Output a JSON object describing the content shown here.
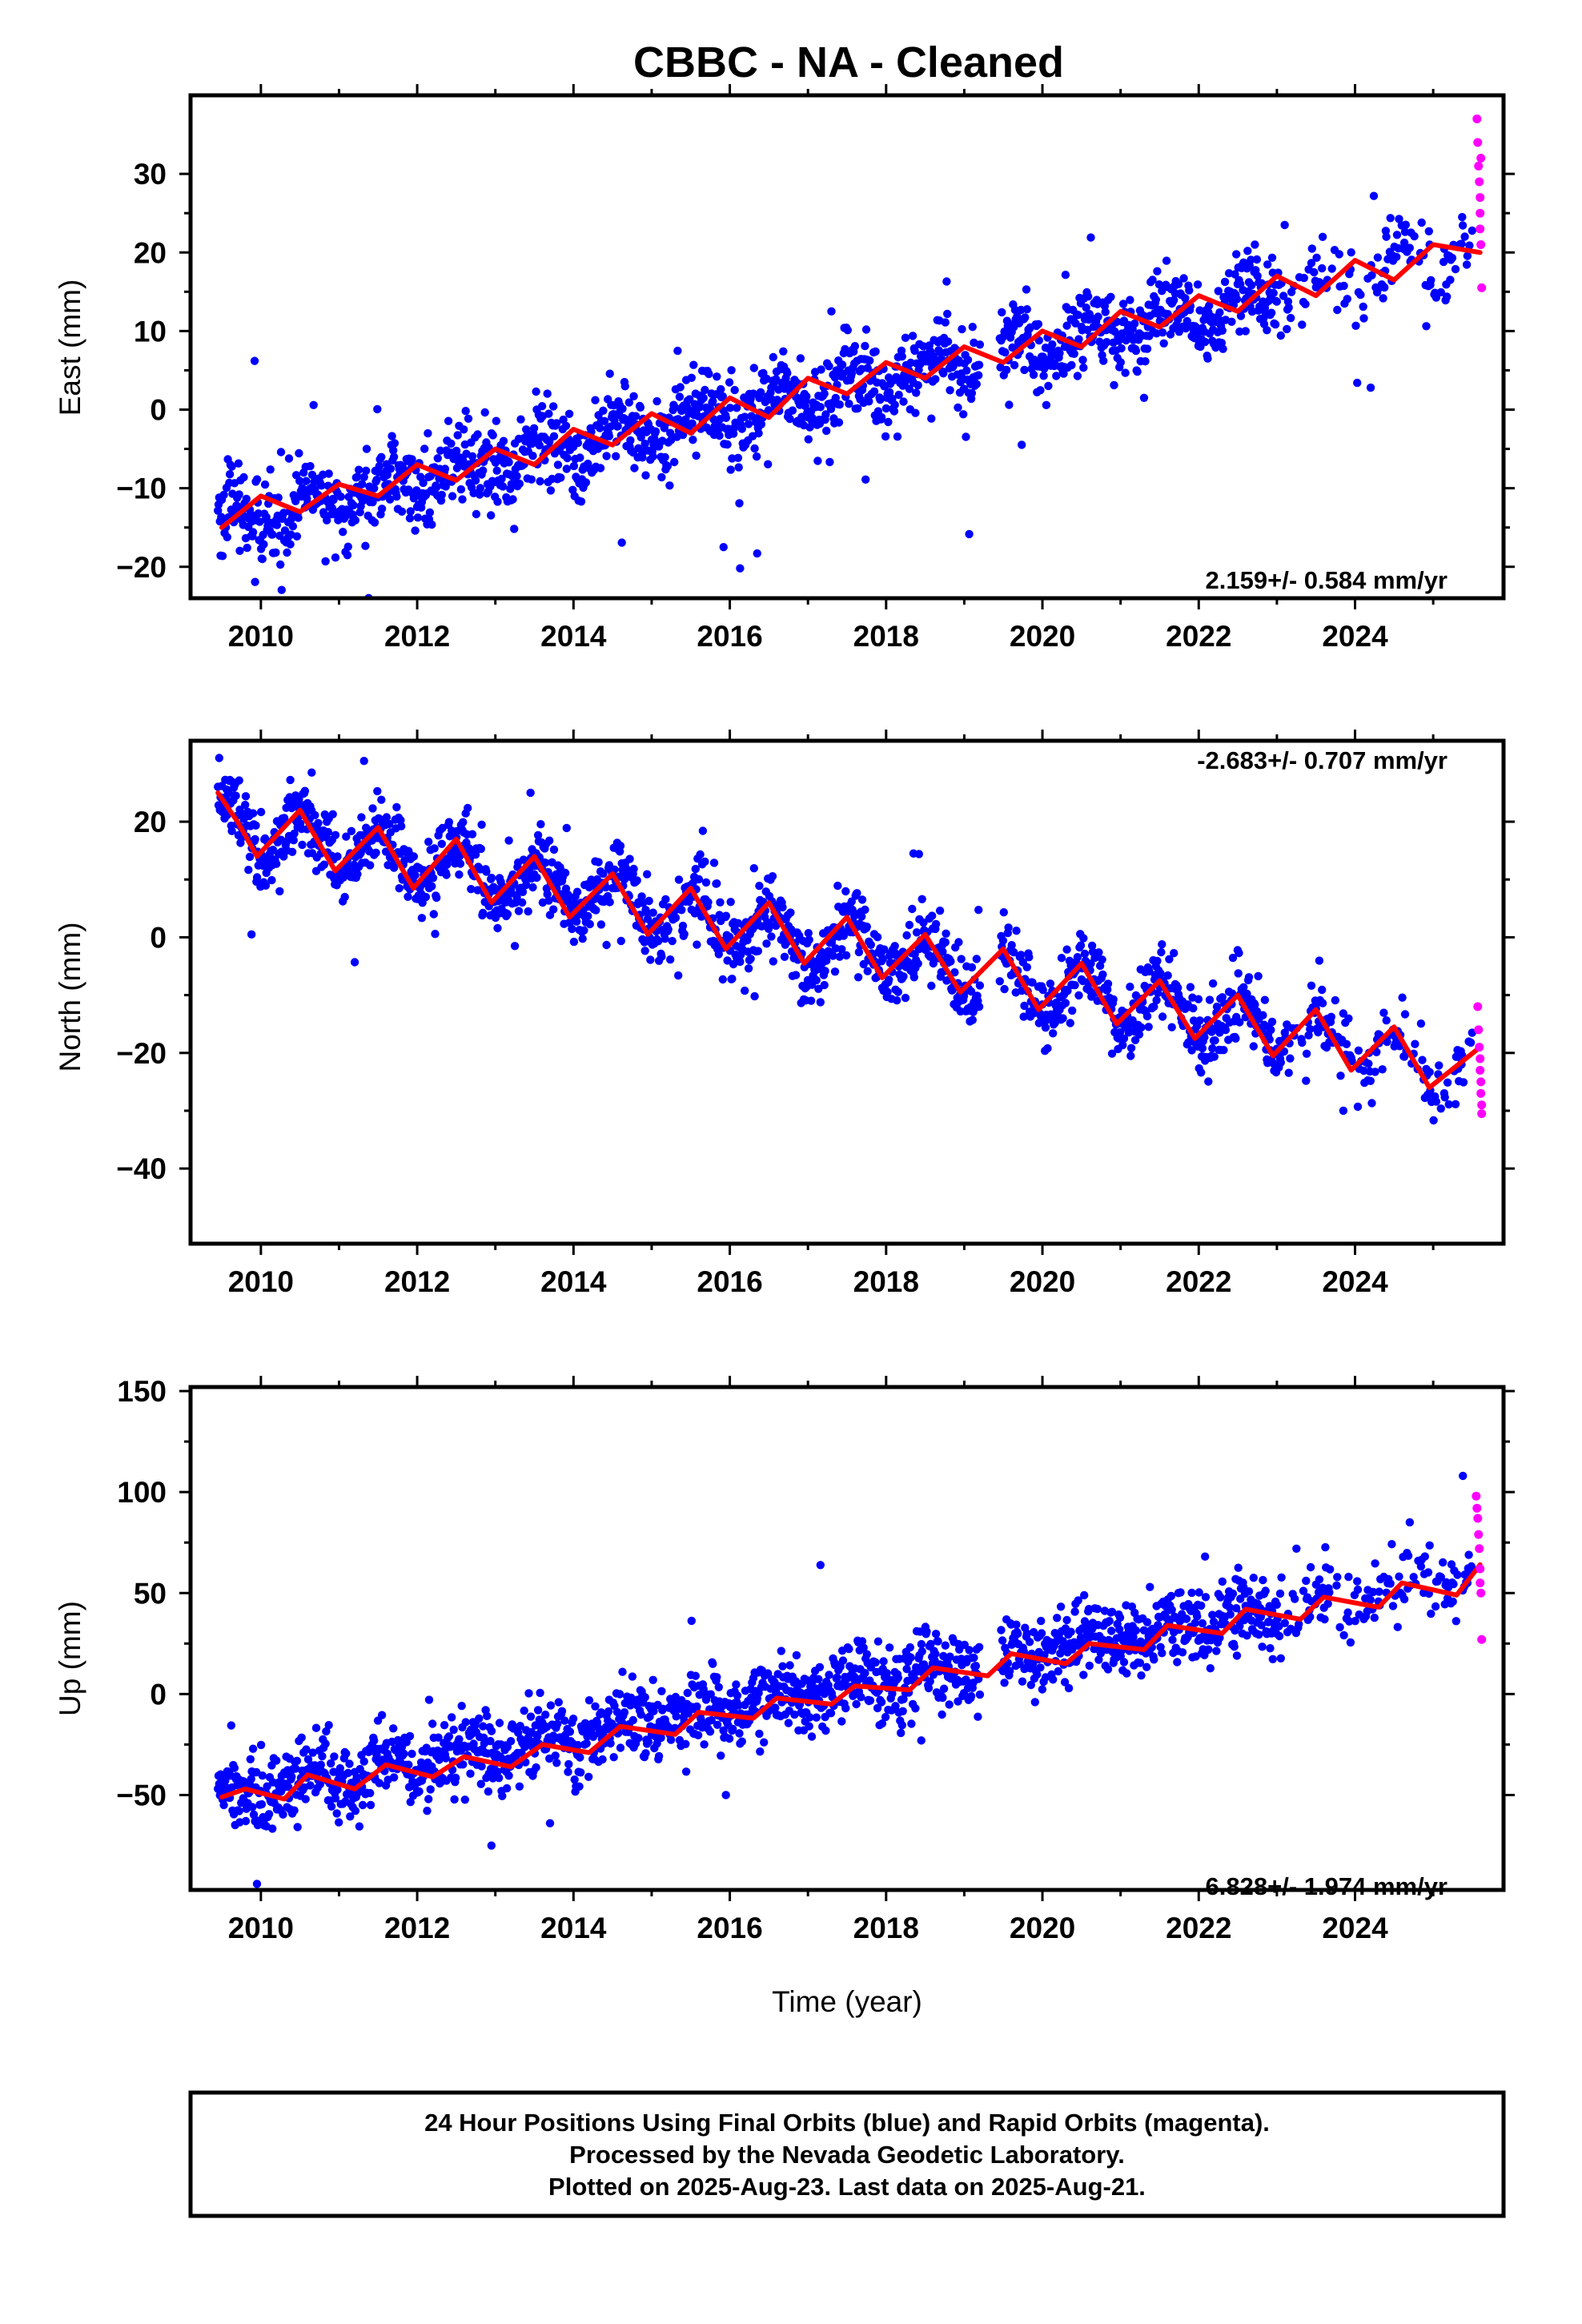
{
  "title": "CBBC  - NA - Cleaned",
  "colors": {
    "final": "#0000ff",
    "rapid": "#ff00ff",
    "model": "#ff0000",
    "frame": "#000000"
  },
  "chart_data": [
    {
      "type": "scatter",
      "component": "East",
      "ylabel": "East (mm)",
      "xlabel": "",
      "xlim": [
        2009.1,
        2025.9
      ],
      "ylim": [
        -24,
        40
      ],
      "xticks": [
        2010,
        2012,
        2014,
        2016,
        2018,
        2020,
        2022,
        2024
      ],
      "yticks": [
        -20,
        -10,
        0,
        10,
        20,
        30
      ],
      "rate_label": "2.159+/- 0.584 mm/yr",
      "rate_position": "bottom-right",
      "start": 2009.45,
      "end": 2025.63,
      "trend": {
        "t0": 2009.5,
        "v0": -14.5,
        "rate": 2.159
      },
      "seasonal": {
        "amplitude": 2.0,
        "phase": 0.6
      },
      "scatter_sd": 2.6,
      "series": [
        {
          "name": "Final Orbits",
          "color": "#0000ff"
        },
        {
          "name": "Rapid Orbits",
          "color": "#ff00ff"
        }
      ],
      "model_samples": [
        [
          2009.5,
          -15
        ],
        [
          2010.0,
          -11
        ],
        [
          2010.5,
          -13
        ],
        [
          2011.0,
          -9.5
        ],
        [
          2011.5,
          -11
        ],
        [
          2012.0,
          -7
        ],
        [
          2012.5,
          -9
        ],
        [
          2013.0,
          -5
        ],
        [
          2013.5,
          -7
        ],
        [
          2014.0,
          -2.5
        ],
        [
          2014.5,
          -4.5
        ],
        [
          2015.0,
          -0.5
        ],
        [
          2015.5,
          -3
        ],
        [
          2016.0,
          1.5
        ],
        [
          2016.5,
          -1
        ],
        [
          2017.0,
          4
        ],
        [
          2017.5,
          2
        ],
        [
          2018.0,
          6
        ],
        [
          2018.5,
          4
        ],
        [
          2019.0,
          8
        ],
        [
          2019.5,
          6
        ],
        [
          2020.0,
          10
        ],
        [
          2020.5,
          8
        ],
        [
          2021.0,
          12.5
        ],
        [
          2021.5,
          10.5
        ],
        [
          2022.0,
          14.5
        ],
        [
          2022.5,
          12.5
        ],
        [
          2023.0,
          17
        ],
        [
          2023.5,
          14.5
        ],
        [
          2024.0,
          19
        ],
        [
          2024.5,
          16.5
        ],
        [
          2025.0,
          21
        ],
        [
          2025.6,
          20
        ]
      ],
      "rapid_points": [
        [
          2025.56,
          37
        ],
        [
          2025.57,
          34
        ],
        [
          2025.58,
          31
        ],
        [
          2025.59,
          29
        ],
        [
          2025.6,
          27
        ],
        [
          2025.6,
          25
        ],
        [
          2025.61,
          21
        ],
        [
          2025.62,
          15.5
        ],
        [
          2025.61,
          32
        ],
        [
          2025.6,
          23
        ]
      ],
      "outliers": [
        [
          2009.92,
          6.2
        ],
        [
          2015.92,
          -17.5
        ],
        [
          2016.35,
          -18.3
        ],
        [
          2024.2,
          2.8
        ],
        [
          2017.3,
          12.5
        ],
        [
          2021.3,
          1.5
        ],
        [
          2024.4,
          22
        ],
        [
          2023.1,
          23.5
        ]
      ]
    },
    {
      "type": "scatter",
      "component": "North",
      "ylabel": "North (mm)",
      "xlabel": "",
      "xlim": [
        2009.1,
        2025.9
      ],
      "ylim": [
        -53,
        34
      ],
      "xticks": [
        2010,
        2012,
        2014,
        2016,
        2018,
        2020,
        2022,
        2024
      ],
      "yticks": [
        -40,
        -20,
        0,
        20
      ],
      "rate_label": "-2.683+/- 0.707 mm/yr",
      "rate_position": "top-right",
      "start": 2009.45,
      "end": 2025.63,
      "trend": {
        "t0": 2009.5,
        "v0": 20,
        "rate": -2.683
      },
      "seasonal": {
        "amplitude": 4.5,
        "phase": 0.55
      },
      "scatter_sd": 3.0,
      "series": [
        {
          "name": "Final Orbits",
          "color": "#0000ff"
        },
        {
          "name": "Rapid Orbits",
          "color": "#ff00ff"
        }
      ],
      "model_samples": [
        [
          2009.45,
          25
        ],
        [
          2009.7,
          20
        ],
        [
          2009.95,
          14
        ],
        [
          2010.5,
          22
        ],
        [
          2010.95,
          11.5
        ],
        [
          2011.5,
          19
        ],
        [
          2011.95,
          8.5
        ],
        [
          2012.5,
          17
        ],
        [
          2012.95,
          6
        ],
        [
          2013.5,
          14
        ],
        [
          2013.95,
          3.5
        ],
        [
          2014.5,
          11
        ],
        [
          2014.95,
          0.5
        ],
        [
          2015.5,
          8.5
        ],
        [
          2015.95,
          -2
        ],
        [
          2016.5,
          6
        ],
        [
          2016.95,
          -4.5
        ],
        [
          2017.5,
          3.5
        ],
        [
          2017.95,
          -7
        ],
        [
          2018.5,
          0.5
        ],
        [
          2018.95,
          -9.5
        ],
        [
          2019.5,
          -2
        ],
        [
          2019.95,
          -12.5
        ],
        [
          2020.5,
          -4.5
        ],
        [
          2020.95,
          -15
        ],
        [
          2021.5,
          -7.5
        ],
        [
          2021.95,
          -17.5
        ],
        [
          2022.5,
          -10
        ],
        [
          2022.95,
          -20.5
        ],
        [
          2023.5,
          -12.5
        ],
        [
          2023.95,
          -23
        ],
        [
          2024.5,
          -15.5
        ],
        [
          2024.95,
          -26
        ],
        [
          2025.6,
          -19
        ]
      ],
      "rapid_points": [
        [
          2025.57,
          -12
        ],
        [
          2025.58,
          -16
        ],
        [
          2025.59,
          -19
        ],
        [
          2025.6,
          -21
        ],
        [
          2025.6,
          -23
        ],
        [
          2025.61,
          -25
        ],
        [
          2025.61,
          -27
        ],
        [
          2025.62,
          -29
        ],
        [
          2025.62,
          -30.5
        ]
      ],
      "outliers": [
        [
          2009.88,
          0.5
        ],
        [
          2018.35,
          14.5
        ],
        [
          2018.42,
          14.4
        ],
        [
          2010.65,
          28.5
        ],
        [
          2013.45,
          25
        ],
        [
          2023.85,
          -30
        ]
      ]
    },
    {
      "type": "scatter",
      "component": "Up",
      "ylabel": "Up (mm)",
      "xlabel": "Time (year)",
      "xlim": [
        2009.1,
        2025.9
      ],
      "ylim": [
        -97,
        152
      ],
      "xticks": [
        2010,
        2012,
        2014,
        2016,
        2018,
        2020,
        2022,
        2024
      ],
      "yticks": [
        -50,
        0,
        50,
        100,
        150
      ],
      "rate_label": "6.828+/- 1.974 mm/yr",
      "rate_position": "bottom-right",
      "start": 2009.45,
      "end": 2025.63,
      "trend": {
        "t0": 2009.5,
        "v0": -51,
        "rate": 6.828
      },
      "seasonal": {
        "amplitude": 4.0,
        "phase": 0.6
      },
      "scatter_sd": 9.0,
      "series": [
        {
          "name": "Final Orbits",
          "color": "#0000ff"
        },
        {
          "name": "Rapid Orbits",
          "color": "#ff00ff"
        }
      ],
      "model_samples": [
        [
          2009.5,
          -51
        ],
        [
          2009.8,
          -47
        ],
        [
          2010.3,
          -52
        ],
        [
          2010.6,
          -40
        ],
        [
          2011.2,
          -47
        ],
        [
          2011.6,
          -35
        ],
        [
          2012.2,
          -41
        ],
        [
          2012.6,
          -31
        ],
        [
          2013.2,
          -36
        ],
        [
          2013.6,
          -25
        ],
        [
          2014.2,
          -29
        ],
        [
          2014.6,
          -16
        ],
        [
          2015.3,
          -20
        ],
        [
          2015.6,
          -9
        ],
        [
          2016.3,
          -12
        ],
        [
          2016.6,
          -2
        ],
        [
          2017.3,
          -5
        ],
        [
          2017.6,
          4
        ],
        [
          2018.3,
          2
        ],
        [
          2018.6,
          13
        ],
        [
          2019.3,
          9
        ],
        [
          2019.6,
          20
        ],
        [
          2020.3,
          15
        ],
        [
          2020.6,
          25
        ],
        [
          2021.3,
          22
        ],
        [
          2021.6,
          34
        ],
        [
          2022.3,
          30
        ],
        [
          2022.6,
          42
        ],
        [
          2023.3,
          37
        ],
        [
          2023.6,
          48
        ],
        [
          2024.3,
          43
        ],
        [
          2024.6,
          55
        ],
        [
          2025.3,
          49
        ],
        [
          2025.6,
          64
        ]
      ],
      "rapid_points": [
        [
          2025.55,
          98
        ],
        [
          2025.56,
          92
        ],
        [
          2025.57,
          87
        ],
        [
          2025.58,
          79
        ],
        [
          2025.59,
          72
        ],
        [
          2025.6,
          62
        ],
        [
          2025.6,
          55
        ],
        [
          2025.61,
          50
        ],
        [
          2025.62,
          27
        ]
      ],
      "outliers": [
        [
          2009.95,
          -94
        ],
        [
          2025.38,
          108
        ],
        [
          2012.95,
          -75
        ],
        [
          2015.95,
          -50
        ],
        [
          2018.45,
          -23
        ],
        [
          2023.25,
          72
        ],
        [
          2024.7,
          85
        ]
      ]
    }
  ],
  "footer": {
    "line1": "24 Hour Positions Using Final Orbits (blue) and Rapid Orbits (magenta).",
    "line2": "Processed by the Nevada Geodetic Laboratory.",
    "line3": "Plotted on 2025-Aug-23. Last data on 2025-Aug-21."
  }
}
